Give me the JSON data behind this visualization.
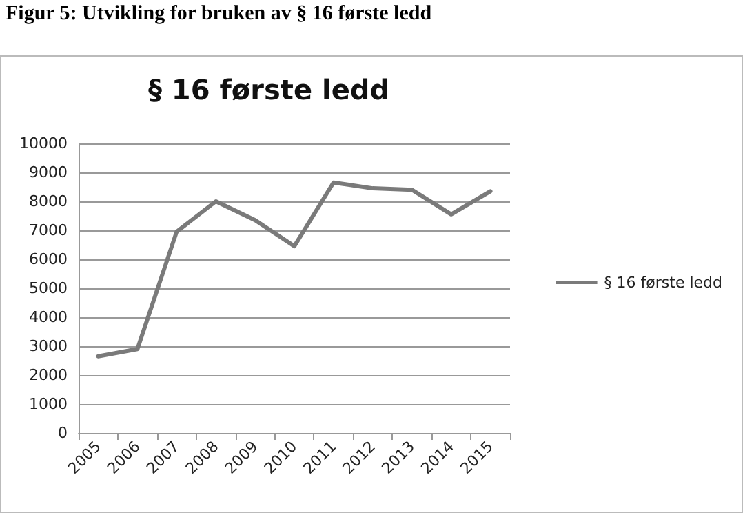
{
  "chart_data": {
    "type": "line",
    "title": "§ 16 første ledd",
    "annotations": [
      "Figur 5: Utvikling for bruken av § 16 første ledd"
    ],
    "categories": [
      "2005",
      "2006",
      "2007",
      "2008",
      "2009",
      "2010",
      "2011",
      "2012",
      "2013",
      "2014",
      "2015"
    ],
    "series": [
      {
        "name": "§ 16 første ledd",
        "color": "#7a7a7a",
        "values": [
          2650,
          2900,
          6950,
          8000,
          7350,
          6450,
          8650,
          8450,
          8400,
          7550,
          8350
        ]
      }
    ],
    "ylim": [
      0,
      10000
    ],
    "yticks": [
      0,
      1000,
      2000,
      3000,
      4000,
      5000,
      6000,
      7000,
      8000,
      9000,
      10000
    ],
    "grid": "y",
    "legend": "right",
    "marker": "none",
    "line_style": "solid"
  }
}
